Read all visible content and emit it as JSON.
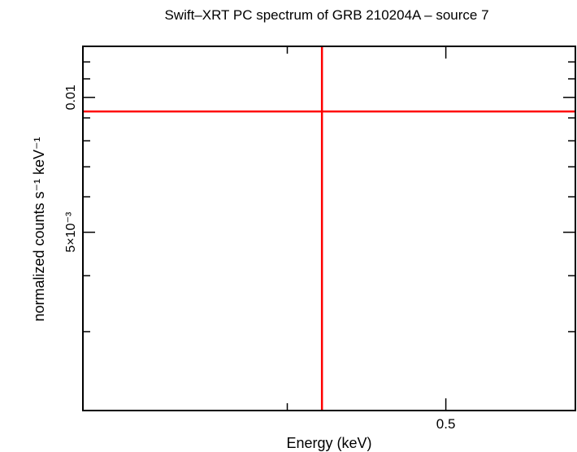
{
  "chart_data": {
    "type": "scatter",
    "title": "Swift–XRT PC spectrum of GRB 210204A – source 7",
    "xlabel": "Energy (keV)",
    "ylabel": "normalized counts s⁻¹ keV⁻¹",
    "x_scale": "log",
    "y_scale": "log",
    "xlim": [
      0.3,
      0.6
    ],
    "ylim": [
      0.002,
      0.013
    ],
    "x_ticks": [
      {
        "value": 0.5,
        "label": "0.5"
      }
    ],
    "y_ticks": [
      {
        "value": 0.005,
        "label": "5×10⁻³"
      },
      {
        "value": 0.01,
        "label": "0.01"
      }
    ],
    "grid": false,
    "series": [
      {
        "points": [
          {
            "x": 0.42,
            "y": 0.0093,
            "x_err": [
              0.3,
              0.6
            ],
            "y_err": [
              0.002,
              0.013
            ]
          }
        ],
        "color": "#ff0000"
      }
    ]
  }
}
